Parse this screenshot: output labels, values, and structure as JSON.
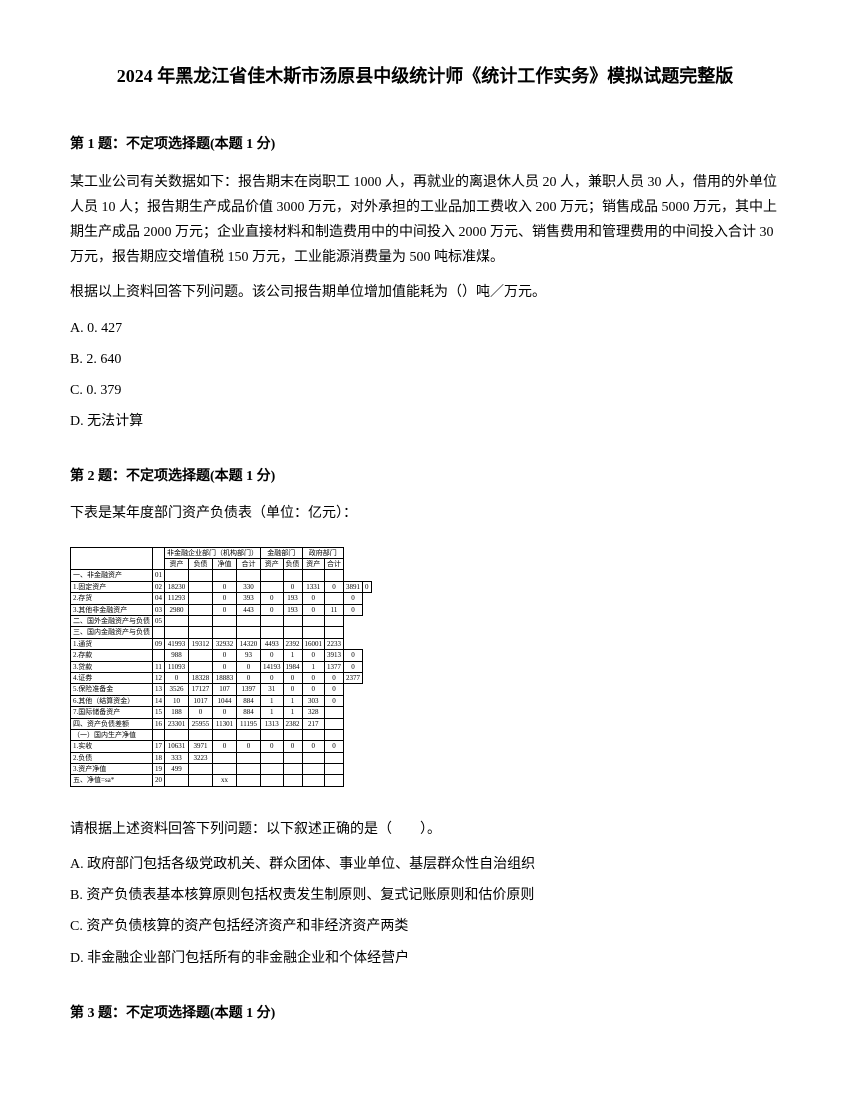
{
  "title": "2024 年黑龙江省佳木斯市汤原县中级统计师《统计工作实务》模拟试题完整版",
  "q1": {
    "header": "第 1 题：不定项选择题(本题 1 分)",
    "body1": "某工业公司有关数据如下：报告期末在岗职工 1000 人，再就业的离退休人员 20 人，兼职人员 30 人，借用的外单位人员 10 人；报告期生产成品价值 3000 万元，对外承担的工业品加工费收入 200 万元；销售成品 5000 万元，其中上期生产成品 2000 万元；企业直接材料和制造费用中的中间投入 2000 万元、销售费用和管理费用的中间投入合计 30 万元，报告期应交增值税 150 万元，工业能源消费量为 500 吨标准煤。",
    "body2": "根据以上资料回答下列问题。该公司报告期单位增加值能耗为（）吨／万元。",
    "optA": "A. 0. 427",
    "optB": "B. 2. 640",
    "optC": "C. 0. 379",
    "optD": "D. 无法计算"
  },
  "q2": {
    "header": "第 2 题：不定项选择题(本题 1 分)",
    "intro": "下表是某年度部门资产负债表（单位：亿元）：",
    "prompt": "请根据上述资料回答下列问题：以下叙述正确的是（　　）。",
    "optA": "A. 政府部门包括各级党政机关、群众团体、事业单位、基层群众性自治组织",
    "optB": "B. 资产负债表基本核算原则包括权责发生制原则、复式记账原则和估价原则",
    "optC": "C. 资产负债核算的资产包括经济资产和非经济资产两类",
    "optD": "D. 非金融企业部门包括所有的非金融企业和个体经营户"
  },
  "q3": {
    "header": "第 3 题：不定项选择题(本题 1 分)"
  },
  "table": {
    "header_top": [
      "",
      "非金融企业部门（机构部门）",
      "金融部门",
      "政府部门"
    ],
    "header_sub": [
      "",
      "资产",
      "负债",
      "净值",
      "合计",
      "资产",
      "负债",
      "净值",
      "合计"
    ],
    "rows": [
      [
        "一、非金融资产",
        "01",
        "",
        "",
        "",
        "",
        "",
        "",
        "",
        ""
      ],
      [
        "1.固定资产",
        "02",
        "18230",
        "",
        "0",
        "330",
        "",
        "0",
        "1331",
        "0",
        "3891",
        "0"
      ],
      [
        "2.存货",
        "04",
        "11293",
        "",
        "0",
        "393",
        "0",
        "193",
        "0",
        "",
        "0"
      ],
      [
        "3.其他非金融资产",
        "03",
        "2980",
        "",
        "0",
        "443",
        "0",
        "193",
        "0",
        "11",
        "0"
      ],
      [
        "二、国外金融资产与负债",
        "05",
        "",
        "",
        "",
        "",
        "",
        "",
        "",
        ""
      ],
      [
        "三、国内金融资产与负债",
        "",
        "",
        "",
        "",
        "",
        "",
        "",
        "",
        ""
      ],
      [
        "1.通货",
        "09",
        "41993",
        "19312",
        "32932",
        "14320",
        "4493",
        "2392",
        "16001",
        "2233"
      ],
      [
        "2.存款",
        "",
        "988",
        "",
        "0",
        "93",
        "0",
        "1",
        "0",
        "3913",
        "0"
      ],
      [
        "3.贷款",
        "11",
        "11093",
        "",
        "0",
        "0",
        "14193",
        "1984",
        "1",
        "1377",
        "0"
      ],
      [
        "4.证券",
        "12",
        "0",
        "18328",
        "18883",
        "0",
        "0",
        "0",
        "0",
        "0",
        "2377"
      ],
      [
        "5.保险准备金",
        "13",
        "3526",
        "17127",
        "107",
        "1397",
        "31",
        "0",
        "0",
        "0"
      ],
      [
        "6.其他（结算资金）",
        "14",
        "10",
        "1017",
        "1044",
        "884",
        "1",
        "1",
        "303",
        "0"
      ],
      [
        "7.国际储备资产",
        "15",
        "188",
        "0",
        "0",
        "884",
        "1",
        "1",
        "328",
        ""
      ],
      [
        "四、资产负债差额",
        "16",
        "23301",
        "25955",
        "11301",
        "11195",
        "1313",
        "2382",
        "217",
        ""
      ],
      [
        "（一）国内生产净值",
        "",
        "",
        "",
        "",
        "",
        "",
        "",
        "",
        ""
      ],
      [
        "1.实收",
        "17",
        "10631",
        "3971",
        "0",
        "0",
        "0",
        "0",
        "0",
        "0"
      ],
      [
        "2.负债",
        "18",
        "333",
        "3223",
        "",
        "",
        "",
        "",
        "",
        ""
      ],
      [
        "3.资产净值",
        "19",
        "499",
        "",
        "",
        "",
        "",
        "",
        "",
        ""
      ],
      [
        "五、净值=sa*",
        "20",
        "",
        "",
        "xx",
        "",
        "",
        "",
        "",
        ""
      ]
    ]
  }
}
